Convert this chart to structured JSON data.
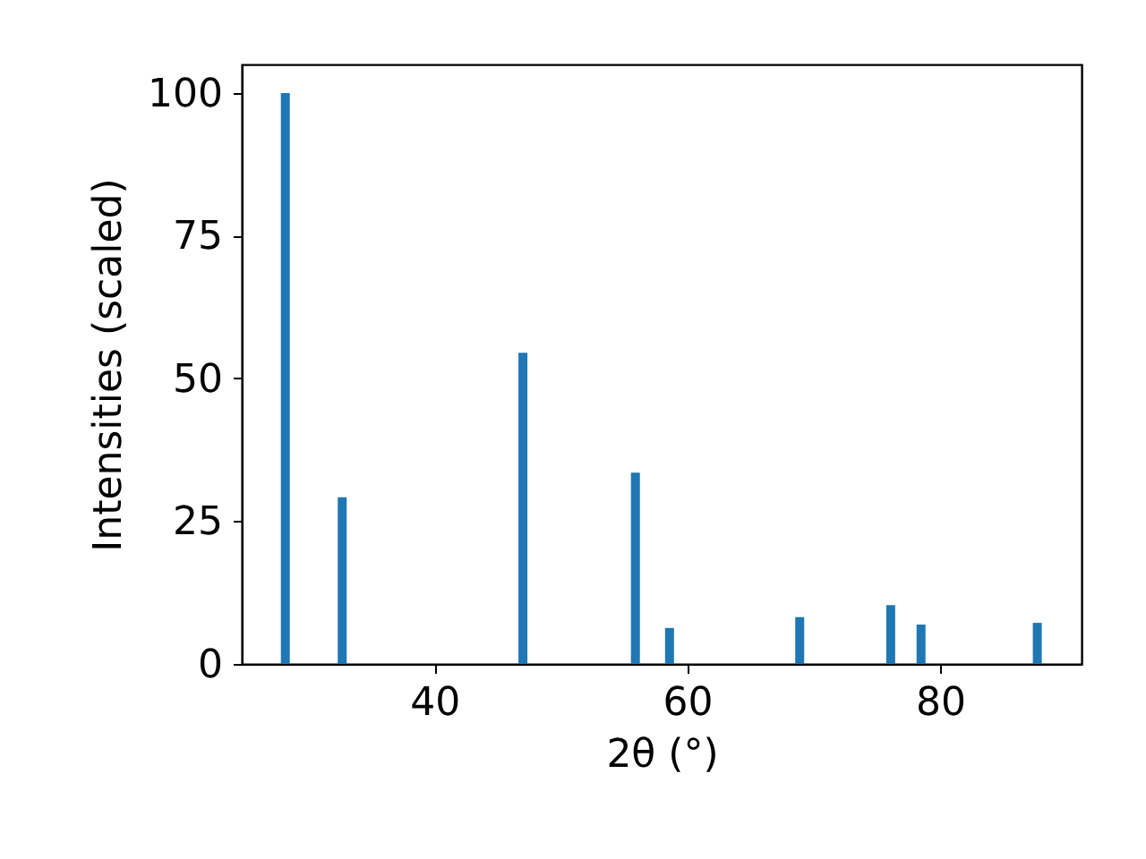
{
  "chart_data": {
    "type": "bar",
    "xlabel": "2θ (°)",
    "ylabel": "Intensities (scaled)",
    "x": [
      28.2,
      32.7,
      47.0,
      55.9,
      58.6,
      68.9,
      76.1,
      78.5,
      87.7
    ],
    "values": [
      100,
      29.2,
      54.5,
      33.5,
      6.3,
      8.2,
      10.3,
      6.9,
      7.2
    ],
    "color": "#1f77b4",
    "xlim": [
      24.75,
      91.2
    ],
    "xticks": [
      40,
      60,
      80
    ],
    "ylim": [
      0,
      105
    ],
    "yticks": [
      0,
      25,
      50,
      75,
      100
    ],
    "grid": false
  }
}
